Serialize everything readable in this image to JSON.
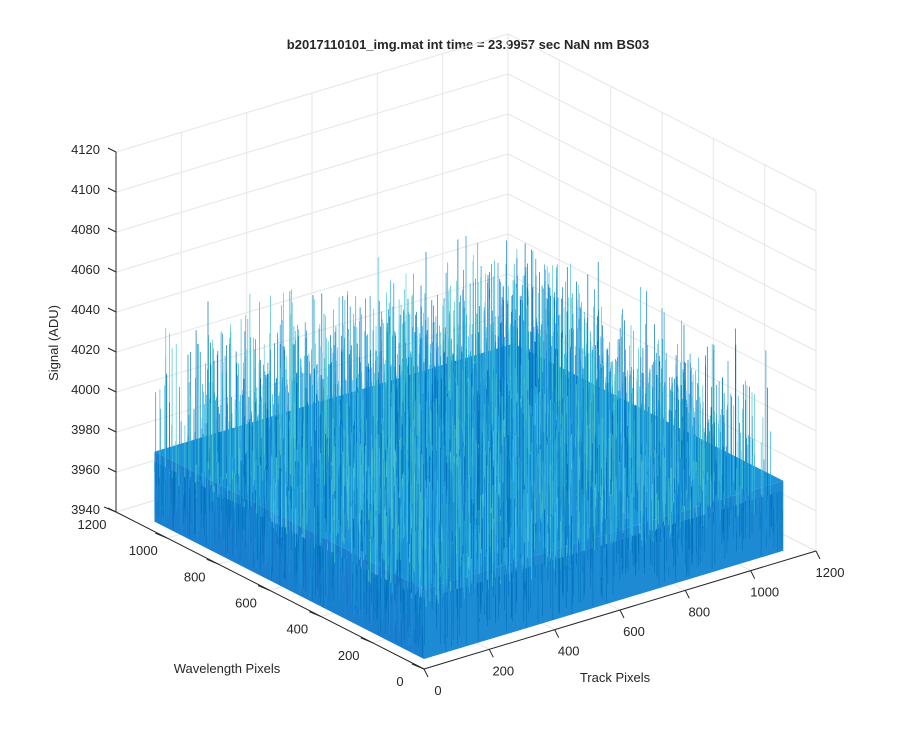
{
  "chart_data": {
    "type": "surface3d",
    "title": "b2017110101_img.mat int time = 23.9957 sec  NaN nm BS03",
    "xlabel": "Track Pixels",
    "ylabel": "Wavelength Pixels",
    "zlabel": "Signal (ADU)",
    "xlim": [
      0,
      1200
    ],
    "ylim": [
      0,
      1200
    ],
    "zlim": [
      3940,
      4120
    ],
    "x_ticks": [
      "0",
      "200",
      "400",
      "600",
      "800",
      "1000",
      "1200"
    ],
    "y_ticks": [
      "0",
      "200",
      "400",
      "600",
      "800",
      "1000",
      "1200"
    ],
    "z_ticks": [
      "3940",
      "3960",
      "3980",
      "4000",
      "4020",
      "4040",
      "4060",
      "4080",
      "4100",
      "4120"
    ],
    "grid": true,
    "surface": {
      "x_range": [
        0,
        1100
      ],
      "y_range": [
        0,
        1050
      ],
      "mean_signal": 3980,
      "noise_range": [
        3945,
        4055
      ],
      "colormap": "parula",
      "colors": [
        "#0072bd",
        "#1a8fd6",
        "#2ab0e0",
        "#4cc4cf"
      ]
    }
  }
}
